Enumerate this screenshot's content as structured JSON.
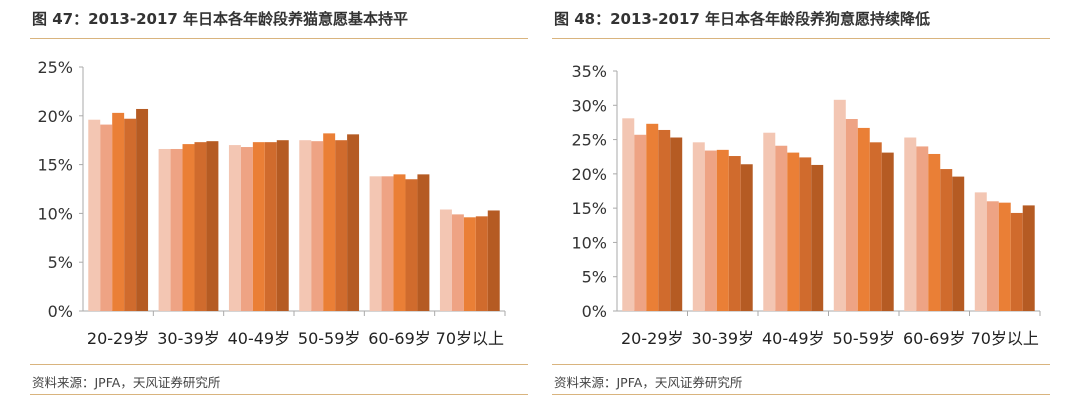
{
  "colors": [
    "#f3c6b3",
    "#eea384",
    "#ea7f36",
    "#d06b2d",
    "#b55b23"
  ],
  "chart_data": [
    {
      "type": "bar",
      "title": "图 47：2013-2017 年日本各年龄段养猫意愿基本持平",
      "source": "资料来源：JPFA，天风证券研究所",
      "categories": [
        "20-29岁",
        "30-39岁",
        "40-49岁",
        "50-59岁",
        "60-69岁",
        "70岁以上"
      ],
      "yticks": [
        "0%",
        "5%",
        "10%",
        "15%",
        "20%",
        "25%"
      ],
      "ylim": [
        0,
        25
      ],
      "series": [
        {
          "values": [
            19.6,
            16.6,
            17.0,
            17.5,
            13.8,
            10.4
          ]
        },
        {
          "values": [
            19.1,
            16.6,
            16.8,
            17.4,
            13.8,
            9.9
          ]
        },
        {
          "values": [
            20.3,
            17.1,
            17.3,
            18.2,
            14.0,
            9.6
          ]
        },
        {
          "values": [
            19.7,
            17.3,
            17.3,
            17.5,
            13.5,
            9.7
          ]
        },
        {
          "values": [
            20.7,
            17.4,
            17.5,
            18.1,
            14.0,
            10.3
          ]
        }
      ]
    },
    {
      "type": "bar",
      "title": "图 48：2013-2017 年日本各年龄段养狗意愿持续降低",
      "source": "资料来源：JPFA，天风证券研究所",
      "categories": [
        "20-29岁",
        "30-39岁",
        "40-49岁",
        "50-59岁",
        "60-69岁",
        "70岁以上"
      ],
      "yticks": [
        "0%",
        "5%",
        "10%",
        "15%",
        "20%",
        "25%",
        "30%",
        "35%"
      ],
      "ylim": [
        0,
        35
      ],
      "series": [
        {
          "values": [
            28.1,
            24.6,
            26.0,
            30.8,
            25.3,
            17.3
          ]
        },
        {
          "values": [
            25.7,
            23.4,
            24.1,
            28.0,
            24.0,
            16.0
          ]
        },
        {
          "values": [
            27.3,
            23.5,
            23.1,
            26.7,
            22.9,
            15.8
          ]
        },
        {
          "values": [
            26.4,
            22.6,
            22.4,
            24.6,
            20.7,
            14.3
          ]
        },
        {
          "values": [
            25.3,
            21.4,
            21.3,
            23.1,
            19.6,
            15.4
          ]
        }
      ]
    }
  ]
}
